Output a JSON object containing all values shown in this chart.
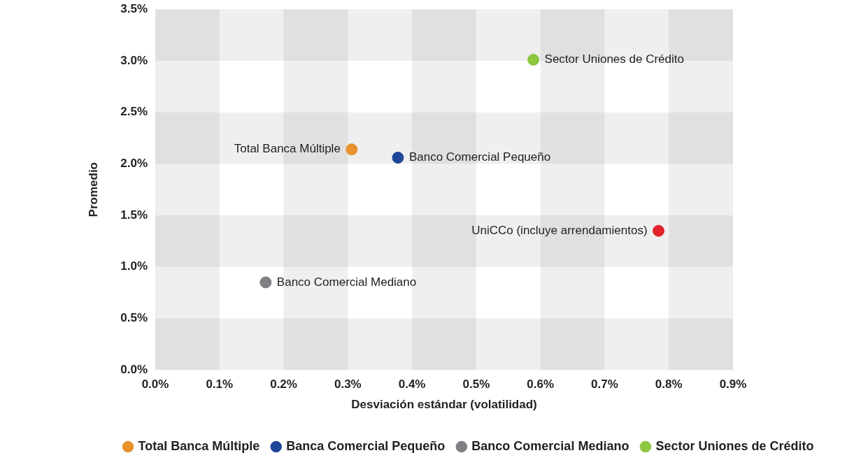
{
  "chart_data": {
    "type": "scatter",
    "xlabel": "Desviación estándar (volatilidad)",
    "ylabel": "Promedio",
    "series": [
      {
        "name": "Total Banca Múltiple",
        "color": "#e8912d",
        "x": [
          0.306
        ],
        "values": [
          2.14
        ]
      },
      {
        "name": "Banca Comercial Pequeño",
        "color": "#1f4597",
        "x": [
          0.378
        ],
        "values": [
          2.06
        ]
      },
      {
        "name": "Banco Comercial Mediano",
        "color": "#808084",
        "x": [
          0.172
        ],
        "values": [
          0.85
        ]
      },
      {
        "name": "Sector Uniones de Crédito",
        "color": "#8dc63f",
        "x": [
          0.589
        ],
        "values": [
          3.01
        ]
      },
      {
        "color": "#e1232a",
        "x": [
          0.784
        ],
        "values": [
          1.35
        ]
      }
    ],
    "annotations": [
      {
        "text": "Sector Uniones de Crédito",
        "x": 0.589,
        "y": 3.01
      },
      {
        "text": "Banco Comercial Pequeño",
        "x": 0.378,
        "y": 2.06
      },
      {
        "text": "Total Banca Múltiple",
        "x": 0.306,
        "y": 2.14
      },
      {
        "text": "UniCCo (incluye arrendamientos)",
        "x": 0.784,
        "y": 1.35
      },
      {
        "text": "Banco Comercial Mediano",
        "x": 0.172,
        "y": 0.85
      }
    ],
    "xlim": [
      0,
      0.9
    ],
    "xticks": [
      {
        "value": 0,
        "label": "0.0%"
      },
      {
        "value": 0.1,
        "label": "0.1%"
      },
      {
        "value": 0.2,
        "label": "0.2%"
      },
      {
        "value": 0.3,
        "label": "0.3%"
      },
      {
        "value": 0.4,
        "label": "0.4%"
      },
      {
        "value": 0.5,
        "label": "0.5%"
      },
      {
        "value": 0.6,
        "label": "0.6%"
      },
      {
        "value": 0.7,
        "label": "0.7%"
      },
      {
        "value": 0.8,
        "label": "0.8%"
      },
      {
        "value": 0.9,
        "label": "0.9%"
      }
    ],
    "ylim": [
      0,
      3.5
    ],
    "yticks": [
      {
        "value": 0,
        "label": "0.0%"
      },
      {
        "value": 0.5,
        "label": "0.5%"
      },
      {
        "value": 1,
        "label": "1.0%"
      },
      {
        "value": 1.5,
        "label": "1.5%"
      },
      {
        "value": 2,
        "label": "2.0%"
      },
      {
        "value": 2.5,
        "label": "2.5%"
      },
      {
        "value": 3,
        "label": "3.0%"
      },
      {
        "value": 3.5,
        "label": "3.5%"
      }
    ],
    "bands": [
      {
        "axis": "x",
        "from": 0,
        "to": 0.1,
        "color": "#efeff0"
      },
      {
        "axis": "x",
        "from": 0.2,
        "to": 0.3,
        "color": "#efeff0"
      },
      {
        "axis": "x",
        "from": 0.4,
        "to": 0.5,
        "color": "#efeff0"
      },
      {
        "axis": "x",
        "from": 0.6,
        "to": 0.7,
        "color": "#efeff0"
      },
      {
        "axis": "x",
        "from": 0.8,
        "to": 0.9,
        "color": "#efeff0"
      },
      {
        "axis": "y",
        "from": 3,
        "to": 3.5,
        "color": "#efeff0"
      },
      {
        "axis": "y",
        "from": 2,
        "to": 2.5,
        "color": "#efeff0"
      },
      {
        "axis": "y",
        "from": 1,
        "to": 1.5,
        "color": "#efeff0"
      },
      {
        "axis": "y",
        "from": 0,
        "to": 0.5,
        "color": "#efeff0"
      }
    ],
    "legend": "bottom",
    "marker": "circle"
  }
}
